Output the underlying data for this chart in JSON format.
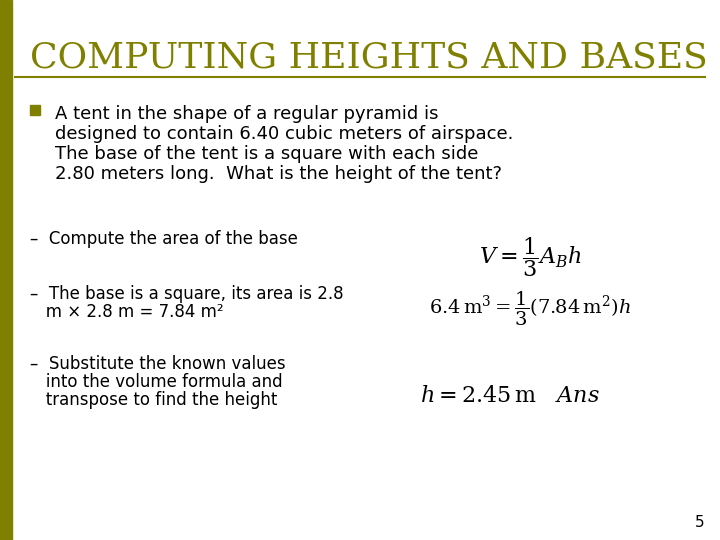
{
  "title": "COMPUTING HEIGHTS AND BASES",
  "title_color": "#808000",
  "title_fontsize": 26,
  "background_color": "#ffffff",
  "left_bar_color": "#808000",
  "separator_color": "#808000",
  "bullet_color": "#808000",
  "text_color": "#000000",
  "bullet_text_lines": [
    "A tent in the shape of a regular pyramid is",
    "designed to contain 6.40 cubic meters of airspace.",
    "The base of the tent is a square with each side",
    "2.80 meters long.  What is the height of the tent?"
  ],
  "bullet_fontsize": 13,
  "dash_items": [
    [
      "–  Compute the area of the base"
    ],
    [
      "–  The base is a square, its area is 2.8",
      "   m × 2.8 m = 7.84 m²"
    ],
    [
      "–  Substitute the known values",
      "   into the volume formula and",
      "   transpose to find the height"
    ]
  ],
  "dash_fontsize": 12,
  "formula_fontsize": 13,
  "page_number": "5"
}
